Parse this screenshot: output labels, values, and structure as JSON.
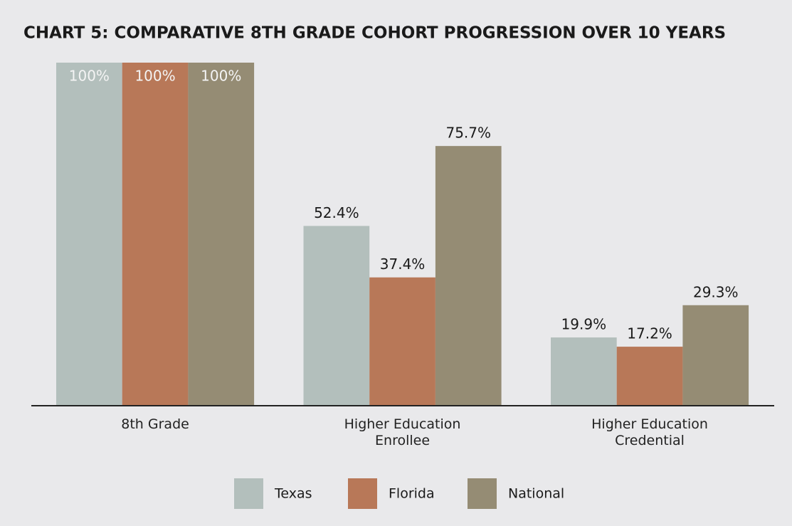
{
  "chart_data": {
    "type": "bar",
    "title": "CHART 5: COMPARATIVE 8TH GRADE COHORT PROGRESSION OVER 10 YEARS",
    "categories": [
      "8th Grade",
      "Higher Education\nEnrollee",
      "Higher Education\nCredential"
    ],
    "series": [
      {
        "name": "Texas",
        "color": "#b3bfbc",
        "values": [
          100,
          52.4,
          19.9
        ],
        "value_labels": [
          "100%",
          "52.4%",
          "19.9%"
        ]
      },
      {
        "name": "Florida",
        "color": "#b87858",
        "values": [
          100,
          37.4,
          17.2
        ],
        "value_labels": [
          "100%",
          "37.4%",
          "17.2%"
        ]
      },
      {
        "name": "National",
        "color": "#958c74",
        "values": [
          100,
          75.7,
          29.3
        ],
        "value_labels": [
          "100%",
          "75.7%",
          "29.3%"
        ]
      }
    ],
    "ylim": [
      0,
      100
    ],
    "legend": "bottom"
  }
}
